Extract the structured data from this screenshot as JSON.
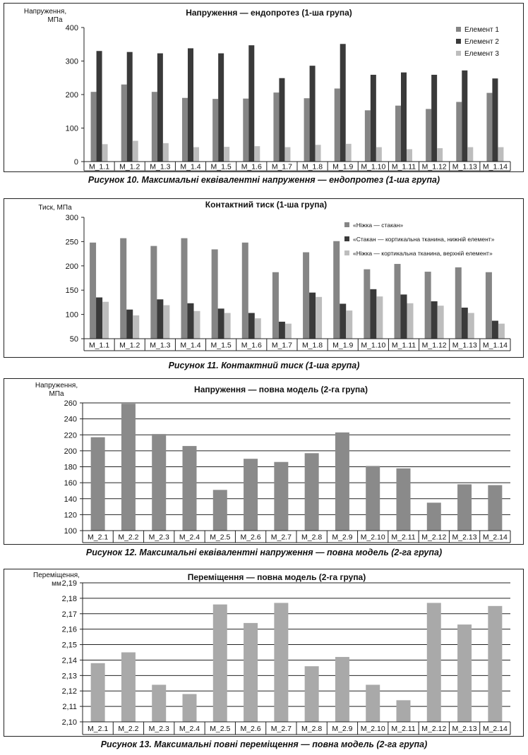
{
  "figures": [
    {
      "caption": "Рисунок 10. Максимальні еквівалентні напруження — ендопротез (1-ша група)",
      "chart_data": {
        "type": "bar",
        "title": "Напруження — ендопротез (1-ша група)",
        "ylabel": [
          "Напруження,",
          "МПа"
        ],
        "ylim": [
          0,
          400
        ],
        "yticks": [
          0,
          100,
          200,
          300,
          400
        ],
        "ytick_labels": [
          "0",
          "100",
          "200",
          "300",
          "400"
        ],
        "grid": false,
        "legend": "top-right",
        "categories": [
          "M_1.1",
          "M_1.2",
          "M_1.3",
          "M_1.4",
          "M_1.5",
          "M_1.6",
          "M_1.7",
          "M_1.8",
          "M_1.9",
          "M_1.10",
          "M_1.11",
          "M_1.12",
          "M_1.13",
          "M_1.14"
        ],
        "series": [
          {
            "name": "Елемент 1",
            "color": "#858585",
            "values": [
              208,
              230,
              208,
              190,
              187,
              188,
              206,
              189,
              218,
              153,
              167,
              157,
              178,
              205
            ]
          },
          {
            "name": "Елемент 2",
            "color": "#3a3a3a",
            "values": [
              330,
              327,
              323,
              338,
              323,
              347,
              249,
              286,
              351,
              259,
              266,
              259,
              272,
              248
            ]
          },
          {
            "name": "Елемент 3",
            "color": "#bdbdbd",
            "values": [
              52,
              62,
              55,
              43,
              44,
              46,
              43,
              50,
              53,
              43,
              37,
              40,
              43,
              43
            ]
          }
        ]
      }
    },
    {
      "caption": "Рисунок 11. Контактний тиск (1-ша група)",
      "chart_data": {
        "type": "bar",
        "title": "Контактний тиск (1-ша група)",
        "ylabel": [
          "Тиск, МПа"
        ],
        "ylim": [
          50,
          300
        ],
        "yticks": [
          50,
          100,
          150,
          200,
          250,
          300
        ],
        "ytick_labels": [
          "50",
          "100",
          "150",
          "200",
          "250",
          "300"
        ],
        "grid": false,
        "legend": "top-right",
        "categories": [
          "M_1.1",
          "M_1.2",
          "M_1.3",
          "M_1.4",
          "M_1.5",
          "M_1.6",
          "M_1.7",
          "M_1.8",
          "M_1.9",
          "M_1.10",
          "M_1.11",
          "M_1.12",
          "M_1.13",
          "M_1.14"
        ],
        "series": [
          {
            "name": "«Ніжка — стакан»",
            "color": "#858585",
            "values": [
              248,
              257,
              241,
              257,
              234,
              248,
              187,
              228,
              251,
              193,
              204,
              188,
              197,
              187
            ]
          },
          {
            "name": "«Стакан — кортикальна тканина, нижній елемент»",
            "color": "#3a3a3a",
            "values": [
              135,
              110,
              131,
              123,
              112,
              103,
              85,
              145,
              122,
              152,
              141,
              127,
              114,
              87
            ]
          },
          {
            "name": "«Ніжка — кортикальна тканина, верхній елемент»",
            "color": "#bdbdbd",
            "values": [
              126,
              98,
              119,
              107,
              103,
              92,
              81,
              136,
              108,
              137,
              123,
              118,
              103,
              81
            ]
          }
        ]
      }
    },
    {
      "caption": "Рисунок 12. Максимальні еквівалентні напруження — повна модель (2-га група)",
      "chart_data": {
        "type": "bar",
        "title": "Напруження — повна модель (2-га група)",
        "ylabel": [
          "Напруження,",
          "МПа"
        ],
        "ylim": [
          100,
          260
        ],
        "yticks": [
          100,
          120,
          140,
          160,
          180,
          200,
          220,
          240,
          260
        ],
        "ytick_labels": [
          "100",
          "120",
          "140",
          "160",
          "180",
          "200",
          "220",
          "240",
          "260"
        ],
        "grid": true,
        "categories": [
          "M_2.1",
          "M_2.2",
          "M_2.3",
          "M_2.4",
          "M_2.5",
          "M_2.6",
          "M_2.7",
          "M_2.8",
          "M_2.9",
          "M_2.10",
          "M_2.11",
          "M_2.12",
          "M_2.13",
          "M_2.14"
        ],
        "series": [
          {
            "color": "#8a8a8a",
            "values": [
              217,
              259,
              221,
              206,
              151,
              190,
              186,
              197,
              223,
              181,
              178,
              135,
              158,
              157
            ]
          }
        ]
      }
    },
    {
      "caption": "Рисунок 13. Максимальні повні переміщення — повна модель (2-га група)",
      "chart_data": {
        "type": "bar",
        "title": "Переміщення — повна модель (2-га група)",
        "ylabel": [
          "Переміщення,",
          "мм"
        ],
        "ylim": [
          2.1,
          2.19
        ],
        "yticks": [
          2.1,
          2.11,
          2.12,
          2.13,
          2.14,
          2.15,
          2.16,
          2.17,
          2.18,
          2.19
        ],
        "ytick_labels": [
          "2,10",
          "2,11",
          "2,12",
          "2,13",
          "2,14",
          "2,15",
          "2,16",
          "2,17",
          "2,18",
          "2,19"
        ],
        "grid": true,
        "categories": [
          "M_2.1",
          "M_2.2",
          "M_2.3",
          "M_2.4",
          "M_2.5",
          "M_2.6",
          "M_2.7",
          "M_2.8",
          "M_2.9",
          "M_2.10",
          "M_2.11",
          "M_2.12",
          "M_2.13",
          "M_2.14"
        ],
        "series": [
          {
            "color": "#a9a9a9",
            "values": [
              2.138,
              2.145,
              2.124,
              2.118,
              2.176,
              2.164,
              2.177,
              2.136,
              2.142,
              2.124,
              2.114,
              2.177,
              2.163,
              2.175
            ]
          }
        ]
      }
    }
  ]
}
